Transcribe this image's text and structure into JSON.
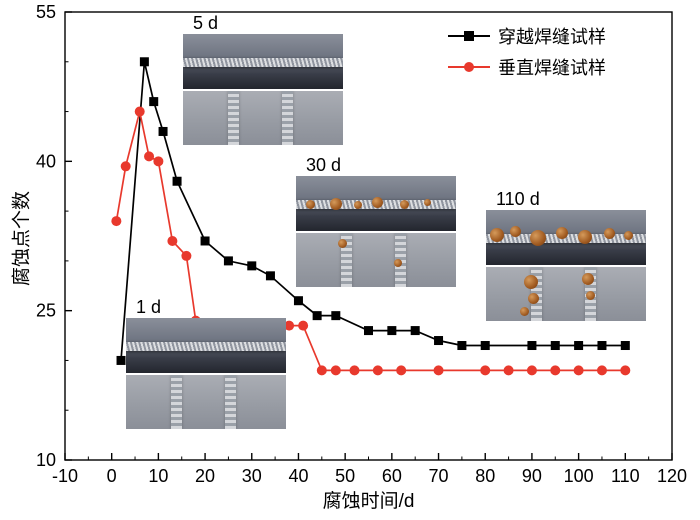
{
  "chart_data": {
    "type": "line",
    "title": "",
    "xlabel": "腐蚀时间/d",
    "ylabel": "腐蚀点个数",
    "xlim": [
      -10,
      120
    ],
    "ylim": [
      10,
      55
    ],
    "x_ticks": [
      -10,
      0,
      10,
      20,
      30,
      40,
      50,
      60,
      70,
      80,
      90,
      100,
      110,
      120
    ],
    "y_ticks": [
      10,
      25,
      40,
      55
    ],
    "minor_tick_step": 5,
    "grid": false,
    "legend_position": "top-right",
    "frame": true,
    "series": [
      {
        "name": "穿越焊缝试样",
        "color": "#000000",
        "marker": "square",
        "points": [
          [
            2,
            20
          ],
          [
            7,
            50
          ],
          [
            9,
            46
          ],
          [
            11,
            43
          ],
          [
            14,
            38
          ],
          [
            20,
            32
          ],
          [
            25,
            30
          ],
          [
            30,
            29.5
          ],
          [
            34,
            28.5
          ],
          [
            40,
            26
          ],
          [
            44,
            24.5
          ],
          [
            48,
            24.5
          ],
          [
            55,
            23
          ],
          [
            60,
            23
          ],
          [
            65,
            23
          ],
          [
            70,
            22
          ],
          [
            75,
            21.5
          ],
          [
            80,
            21.5
          ],
          [
            90,
            21.5
          ],
          [
            95,
            21.5
          ],
          [
            100,
            21.5
          ],
          [
            105,
            21.5
          ],
          [
            110,
            21.5
          ]
        ]
      },
      {
        "name": "垂直焊缝试样",
        "color": "#e8392d",
        "marker": "circle",
        "points": [
          [
            1,
            34
          ],
          [
            3,
            39.5
          ],
          [
            6,
            45
          ],
          [
            8,
            40.5
          ],
          [
            10,
            40
          ],
          [
            13,
            32
          ],
          [
            16,
            30.5
          ],
          [
            18,
            24
          ],
          [
            23,
            23.5
          ],
          [
            28,
            23.5
          ],
          [
            33,
            23.5
          ],
          [
            38,
            23.5
          ],
          [
            41,
            23.5
          ],
          [
            45,
            19
          ],
          [
            48,
            19
          ],
          [
            52,
            19
          ],
          [
            57,
            19
          ],
          [
            62,
            19
          ],
          [
            70,
            19
          ],
          [
            80,
            19
          ],
          [
            85,
            19
          ],
          [
            90,
            19
          ],
          [
            95,
            19
          ],
          [
            100,
            19
          ],
          [
            105,
            19
          ],
          [
            110,
            19
          ]
        ]
      }
    ],
    "insets": [
      {
        "label": "5 d"
      },
      {
        "label": "30 d"
      },
      {
        "label": "110 d"
      },
      {
        "label": "1 d"
      }
    ]
  }
}
